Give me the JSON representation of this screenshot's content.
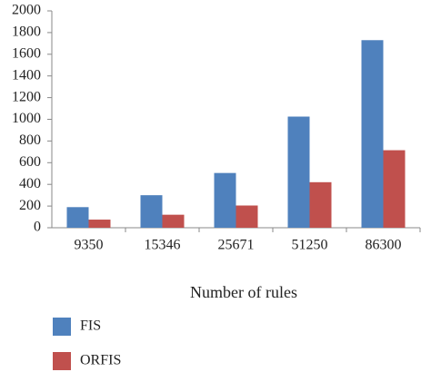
{
  "chart_data": {
    "type": "bar",
    "x_label": "Number of rules",
    "categories": [
      "9350",
      "15346",
      "25671",
      "51250",
      "86300"
    ],
    "series": [
      {
        "name": "FIS",
        "color": "#4f81bd",
        "values": [
          190,
          300,
          505,
          1025,
          1730
        ]
      },
      {
        "name": "ORFIS",
        "color": "#c0504d",
        "values": [
          75,
          120,
          205,
          420,
          715
        ]
      }
    ],
    "ylim": [
      0,
      2000
    ],
    "yticks": [
      0,
      200,
      400,
      600,
      800,
      1000,
      1200,
      1400,
      1600,
      1800,
      2000
    ],
    "grid": false
  }
}
